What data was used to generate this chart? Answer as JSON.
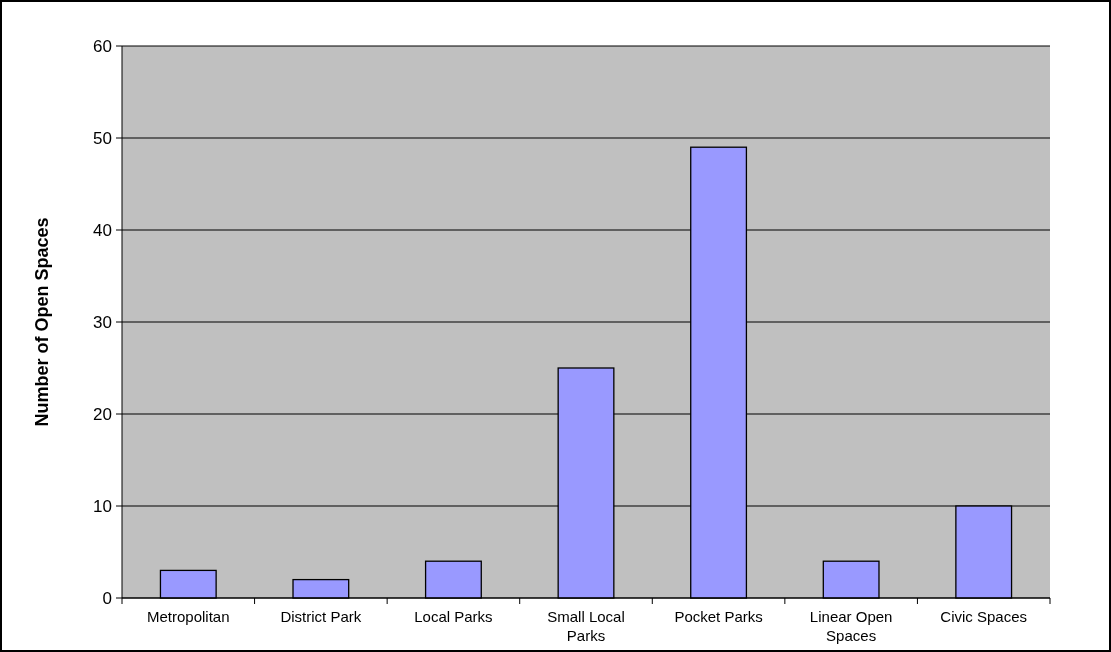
{
  "chart_data": {
    "type": "bar",
    "ylabel": "Number of Open Spaces",
    "categories": [
      "Metropolitan",
      "District Park",
      "Local Parks",
      "Small Local Parks",
      "Pocket Parks",
      "Linear Open Spaces",
      "Civic Spaces"
    ],
    "values": [
      3,
      2,
      4,
      25,
      49,
      4,
      10
    ],
    "color": "#9999ff",
    "ylim": [
      0,
      60
    ],
    "yticks": [
      0,
      10,
      20,
      30,
      40,
      50,
      60
    ],
    "grid": "y"
  }
}
